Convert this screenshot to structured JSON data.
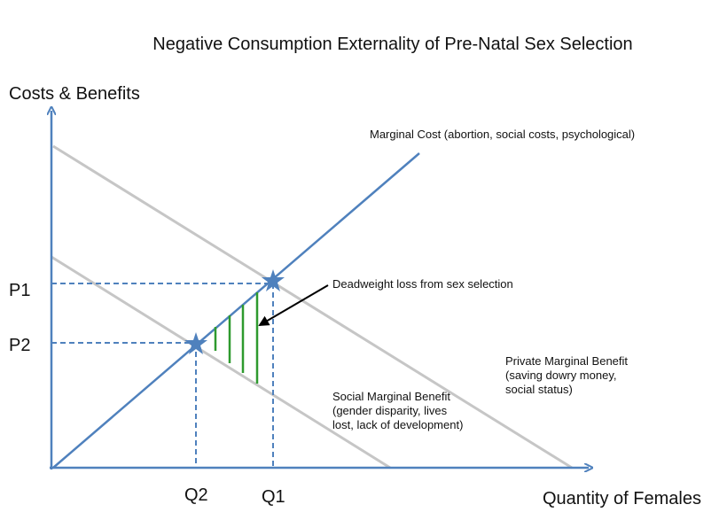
{
  "title": "Negative Consumption Externality of Pre-Natal Sex Selection",
  "axes": {
    "y_label": "Costs & Benefits",
    "x_label": "Quantity of Females"
  },
  "prices": [
    "P1",
    "P2"
  ],
  "quantities": [
    "Q1",
    "Q2"
  ],
  "curves": {
    "marginal_cost": "Marginal Cost (abortion, social costs, psychological)",
    "private_marginal_benefit": [
      "Private Marginal Benefit",
      "(saving dowry money,",
      "social status)"
    ],
    "social_marginal_benefit": [
      "Social Marginal Benefit",
      "(gender disparity, lives",
      "lost, lack of development)"
    ]
  },
  "annotation": "Deadweight loss from sex selection"
}
